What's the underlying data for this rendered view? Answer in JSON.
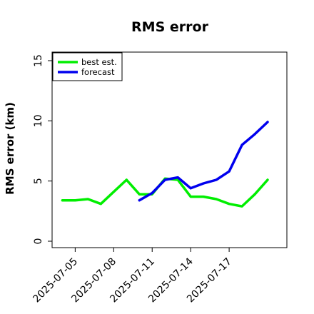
{
  "chart_data": {
    "type": "line",
    "title": "RMS error",
    "xlabel": "",
    "ylabel": "RMS error (km)",
    "ylim": [
      0,
      15
    ],
    "yticks": [
      0,
      5,
      10,
      15
    ],
    "xticks": [
      "2025-07-05",
      "2025-07-08",
      "2025-07-11",
      "2025-07-14",
      "2025-07-17"
    ],
    "xtick_days": [
      5,
      8,
      11,
      14,
      17
    ],
    "xlim_days": [
      3.2,
      21.5
    ],
    "grid": false,
    "legend_position": "top-left",
    "series": [
      {
        "name": "best est.",
        "color": "#00ee00",
        "x": [
          4,
          5,
          6,
          7,
          8,
          9,
          10,
          11,
          12,
          13,
          14,
          15,
          16,
          17,
          18,
          19,
          20
        ],
        "y": [
          3.4,
          3.4,
          3.5,
          3.1,
          4.1,
          5.1,
          3.9,
          3.9,
          5.2,
          5.1,
          3.7,
          3.7,
          3.5,
          3.1,
          2.9,
          3.9,
          5.1
        ]
      },
      {
        "name": "forecast",
        "color": "#0000ee",
        "x": [
          10,
          11,
          12,
          13,
          14,
          15,
          16,
          17,
          18,
          19,
          20
        ],
        "y": [
          3.4,
          4.0,
          5.1,
          5.3,
          4.4,
          4.8,
          5.1,
          5.8,
          8.0,
          8.9,
          9.9
        ]
      }
    ]
  }
}
